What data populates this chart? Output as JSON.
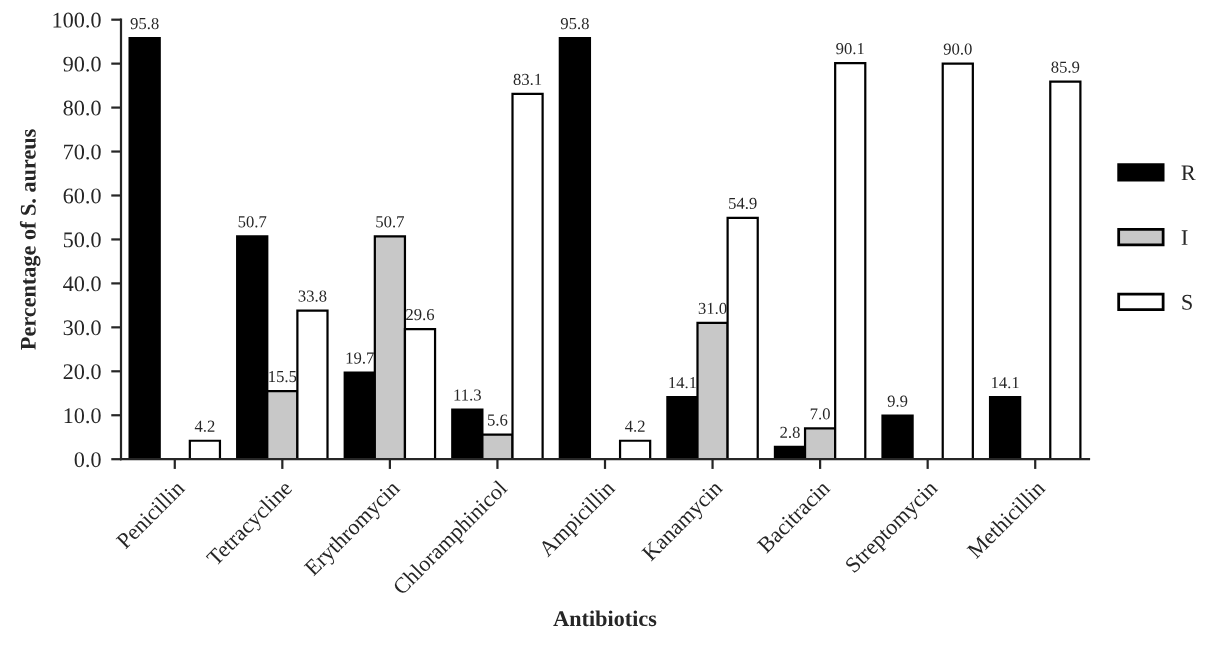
{
  "chart_data": {
    "type": "bar",
    "xlabel": "Antibiotics",
    "ylabel": "Percentage of S. aureus",
    "categories": [
      "Penicillin",
      "Tetracycline",
      "Erythromycin",
      "Chloramphinicol",
      "Ampicillin",
      "Kanamycin",
      "Bacitracin",
      "Streptomycin",
      "Methicillin"
    ],
    "series": [
      {
        "name": "R",
        "color": "#000000",
        "values": [
          95.8,
          50.7,
          19.7,
          11.3,
          95.8,
          14.1,
          2.8,
          9.9,
          14.1
        ],
        "value_labels": [
          "95.8",
          "50.7",
          "19.7",
          "11.3",
          "95.8",
          "14.1",
          "2.8",
          "9.9",
          "14.1"
        ]
      },
      {
        "name": "I",
        "color": "#c8c8c8",
        "values": [
          null,
          15.5,
          50.7,
          5.6,
          null,
          31.0,
          7.0,
          null,
          null
        ],
        "value_labels": [
          null,
          "15.5",
          "50.7",
          "5.6",
          null,
          "31.0",
          "7.0",
          null,
          null
        ]
      },
      {
        "name": "S",
        "color": "#ffffff",
        "values": [
          4.2,
          33.8,
          29.6,
          83.1,
          4.2,
          54.9,
          90.1,
          90.0,
          85.9
        ],
        "value_labels": [
          "4.2",
          "33.8",
          "29.6",
          "83.1",
          "4.2",
          "54.9",
          "90.1",
          "90.0",
          "85.9"
        ]
      }
    ],
    "ylim": [
      0,
      100
    ],
    "yticks": [
      {
        "value": 0,
        "label": "0.0"
      },
      {
        "value": 10,
        "label": "10.0"
      },
      {
        "value": 20,
        "label": "20.0"
      },
      {
        "value": 30,
        "label": "30.0"
      },
      {
        "value": 40,
        "label": "40.0"
      },
      {
        "value": 50,
        "label": "50.0"
      },
      {
        "value": 60,
        "label": "60.0"
      },
      {
        "value": 70,
        "label": "70.0"
      },
      {
        "value": 80,
        "label": "80.0"
      },
      {
        "value": 90,
        "label": "90.0"
      },
      {
        "value": 100,
        "label": "100.0"
      }
    ],
    "legend": "right",
    "grid": false
  }
}
